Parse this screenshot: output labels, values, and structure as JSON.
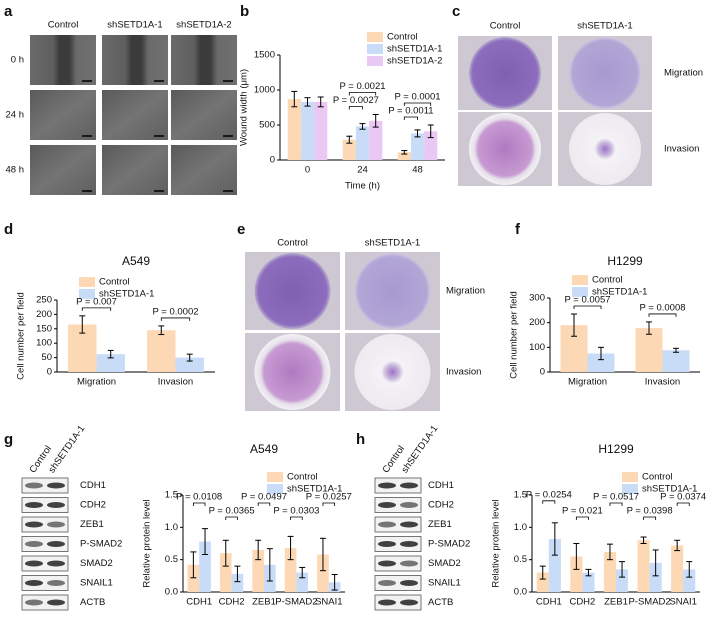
{
  "panel_letters": [
    "a",
    "b",
    "c",
    "d",
    "e",
    "f",
    "g",
    "h"
  ],
  "wound_images": {
    "columns": [
      "Control",
      "shSETD1A-1",
      "shSETD1A-2"
    ],
    "rows": [
      "0 h",
      "24 h",
      "48 h"
    ]
  },
  "transwell_images": [
    {
      "columns": [
        "Control",
        "shSETD1A-1"
      ],
      "rows": [
        "Migration",
        "Invasion"
      ]
    },
    {
      "columns": [
        "Control",
        "shSETD1A-1"
      ],
      "rows": [
        "Migration",
        "Invasion"
      ]
    }
  ],
  "blots": [
    {
      "lanes": [
        "Control",
        "shSETD1A-1"
      ],
      "bands": [
        "CDH1",
        "CDH2",
        "ZEB1",
        "P-SMAD2",
        "SMAD2",
        "SNAIL1",
        "ACTB"
      ]
    },
    {
      "lanes": [
        "Control",
        "shSETD1A-1"
      ],
      "bands": [
        "CDH1",
        "CDH2",
        "ZEB1",
        "P-SMAD2",
        "SMAD2",
        "SNAIL1",
        "ACTB"
      ]
    }
  ],
  "chart_data": [
    {
      "type": "bar",
      "y_label": "Wound width (μm)",
      "x_label": "Time (h)",
      "categories": [
        "0",
        "24",
        "48"
      ],
      "series": [
        {
          "name": "Control",
          "color": "#fcd9b4",
          "values": [
            870,
            290,
            110
          ],
          "errors": [
            110,
            50,
            25
          ]
        },
        {
          "name": "shSETD1A-1",
          "color": "#c9dcf7",
          "values": [
            830,
            480,
            380
          ],
          "errors": [
            60,
            40,
            50
          ]
        },
        {
          "name": "shSETD1A-2",
          "color": "#e9c8f3",
          "values": [
            830,
            560,
            410
          ],
          "errors": [
            70,
            90,
            90
          ]
        }
      ],
      "ylim": [
        0,
        1500
      ],
      "yticks": [
        0,
        500,
        1000,
        1500
      ],
      "legend": "top-right",
      "annotations": [
        "P = 0.0021",
        "P = 0.0027",
        "P = 0.0001",
        "P = 0.0011"
      ]
    },
    {
      "type": "bar",
      "title": "A549",
      "y_label": "Cell number per field",
      "categories": [
        "Migration",
        "Invasion"
      ],
      "series": [
        {
          "name": "Control",
          "color": "#fcd9b4",
          "values": [
            165,
            145
          ],
          "errors": [
            30,
            15
          ]
        },
        {
          "name": "shSETD1A-1",
          "color": "#c9dcf7",
          "values": [
            62,
            50
          ],
          "errors": [
            13,
            12
          ]
        }
      ],
      "ylim": [
        0,
        250
      ],
      "yticks": [
        0,
        50,
        100,
        150,
        200,
        250
      ],
      "legend": "top-left",
      "annotations": [
        "P = 0.007",
        "P = 0.0002"
      ]
    },
    {
      "type": "bar",
      "title": "H1299",
      "y_label": "Cell number per field",
      "categories": [
        "Migration",
        "Invasion"
      ],
      "series": [
        {
          "name": "Control",
          "color": "#fcd9b4",
          "values": [
            190,
            178
          ],
          "errors": [
            45,
            25
          ]
        },
        {
          "name": "shSETD1A-1",
          "color": "#c9dcf7",
          "values": [
            75,
            88
          ],
          "errors": [
            25,
            8
          ]
        }
      ],
      "ylim": [
        0,
        300
      ],
      "yticks": [
        0,
        100,
        200,
        300
      ],
      "legend": "top-left",
      "annotations": [
        "P = 0.0057",
        "P = 0.0008"
      ]
    },
    {
      "type": "bar",
      "title": "A549",
      "y_label": "Relative protein level",
      "categories": [
        "CDH1",
        "CDH2",
        "ZEB1",
        "P-SMAD2",
        "SNAI1"
      ],
      "series": [
        {
          "name": "Control",
          "color": "#fcd9b4",
          "values": [
            0.42,
            0.6,
            0.65,
            0.68,
            0.58
          ],
          "errors": [
            0.2,
            0.2,
            0.15,
            0.18,
            0.25
          ]
        },
        {
          "name": "shSETD1A-1",
          "color": "#c9dcf7",
          "values": [
            0.78,
            0.28,
            0.42,
            0.3,
            0.15
          ],
          "errors": [
            0.2,
            0.12,
            0.25,
            0.08,
            0.12
          ]
        }
      ],
      "ylim": [
        0,
        1.5
      ],
      "yticks": [
        {
          "value": 0,
          "label": "0.0"
        },
        0.5,
        {
          "value": 1,
          "label": "1.0"
        },
        1.5
      ],
      "legend": "top-right",
      "annotations": [
        "P = 0.0108",
        "P = 0.0365",
        "P = 0.0497",
        "P = 0.0303",
        "P = 0.0257"
      ]
    },
    {
      "type": "bar",
      "title": "H1299",
      "y_label": "Relative protein level",
      "categories": [
        "CDH1",
        "CDH2",
        "ZEB1",
        "P-SMAD2",
        "SNAI1"
      ],
      "series": [
        {
          "name": "Control",
          "color": "#fcd9b4",
          "values": [
            0.3,
            0.55,
            0.62,
            0.8,
            0.72
          ],
          "errors": [
            0.1,
            0.2,
            0.12,
            0.05,
            0.08
          ]
        },
        {
          "name": "shSETD1A-1",
          "color": "#c9dcf7",
          "values": [
            0.82,
            0.3,
            0.35,
            0.45,
            0.35
          ],
          "errors": [
            0.25,
            0.05,
            0.12,
            0.2,
            0.12
          ]
        }
      ],
      "ylim": [
        0,
        1.5
      ],
      "yticks": [
        {
          "value": 0,
          "label": "0.0"
        },
        0.5,
        {
          "value": 1,
          "label": "1.0"
        },
        1.5
      ],
      "legend": "top-right",
      "annotations": [
        "P = 0.0254",
        "P = 0.021",
        "P = 0.0517",
        "P = 0.0398",
        "P = 0.0374"
      ]
    }
  ]
}
